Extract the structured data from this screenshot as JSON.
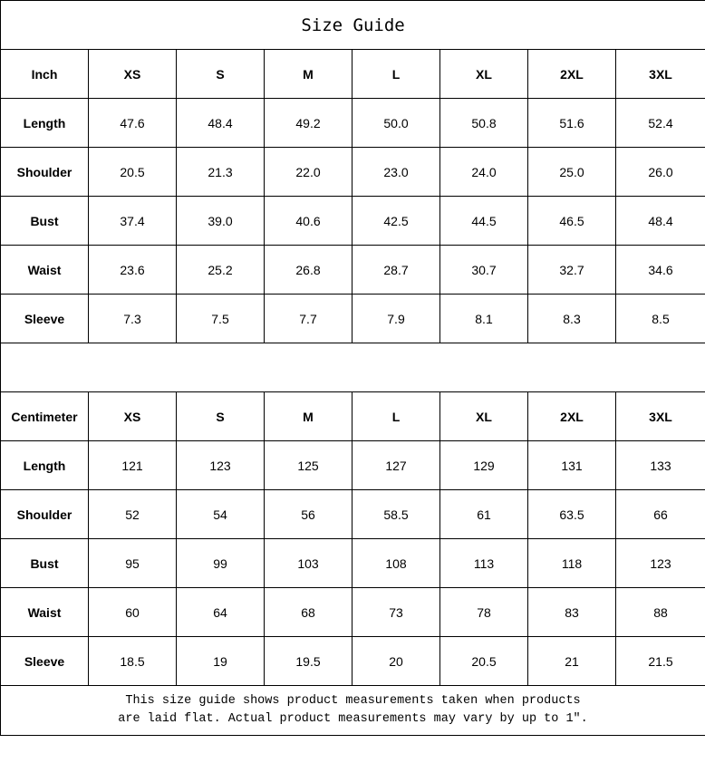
{
  "title": "Size Guide",
  "sizes": [
    "XS",
    "S",
    "M",
    "L",
    "XL",
    "2XL",
    "3XL"
  ],
  "inch": {
    "unit_label": "Inch",
    "rows": [
      {
        "label": "Length",
        "values": [
          "47.6",
          "48.4",
          "49.2",
          "50.0",
          "50.8",
          "51.6",
          "52.4"
        ]
      },
      {
        "label": "Shoulder",
        "values": [
          "20.5",
          "21.3",
          "22.0",
          "23.0",
          "24.0",
          "25.0",
          "26.0"
        ]
      },
      {
        "label": "Bust",
        "values": [
          "37.4",
          "39.0",
          "40.6",
          "42.5",
          "44.5",
          "46.5",
          "48.4"
        ]
      },
      {
        "label": "Waist",
        "values": [
          "23.6",
          "25.2",
          "26.8",
          "28.7",
          "30.7",
          "32.7",
          "34.6"
        ]
      },
      {
        "label": "Sleeve",
        "values": [
          "7.3",
          "7.5",
          "7.7",
          "7.9",
          "8.1",
          "8.3",
          "8.5"
        ]
      }
    ]
  },
  "cm": {
    "unit_label": "Centimeter",
    "rows": [
      {
        "label": "Length",
        "values": [
          "121",
          "123",
          "125",
          "127",
          "129",
          "131",
          "133"
        ]
      },
      {
        "label": "Shoulder",
        "values": [
          "52",
          "54",
          "56",
          "58.5",
          "61",
          "63.5",
          "66"
        ]
      },
      {
        "label": "Bust",
        "values": [
          "95",
          "99",
          "103",
          "108",
          "113",
          "118",
          "123"
        ]
      },
      {
        "label": "Waist",
        "values": [
          "60",
          "64",
          "68",
          "73",
          "78",
          "83",
          "88"
        ]
      },
      {
        "label": "Sleeve",
        "values": [
          "18.5",
          "19",
          "19.5",
          "20",
          "20.5",
          "21",
          "21.5"
        ]
      }
    ]
  },
  "note_line1": "This size guide shows product measurements taken when products",
  "note_line2": "are laid flat. Actual product measurements may vary by up to 1″."
}
